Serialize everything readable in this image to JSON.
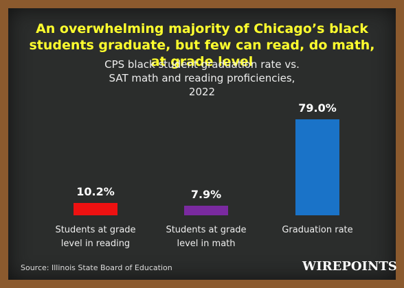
{
  "chart_data": {
    "type": "bar",
    "title": "An overwhelming majority of Chicago’s black students graduate, but few can read, do math, at grade level",
    "subtitle": "CPS black student graduation rate vs. SAT math and reading proficiencies, 2022",
    "categories": [
      "Students at grade level in reading",
      "Students at grade level in math",
      "Graduation rate"
    ],
    "values": [
      10.2,
      7.9,
      79.0
    ],
    "value_labels": [
      "10.2%",
      "7.9%",
      "79.0%"
    ],
    "colors": [
      "#ee1111",
      "#7a2aa0",
      "#1a73c8"
    ],
    "source": "Source: Illinois State Board of Education",
    "logo": "WIREPOINTS"
  }
}
